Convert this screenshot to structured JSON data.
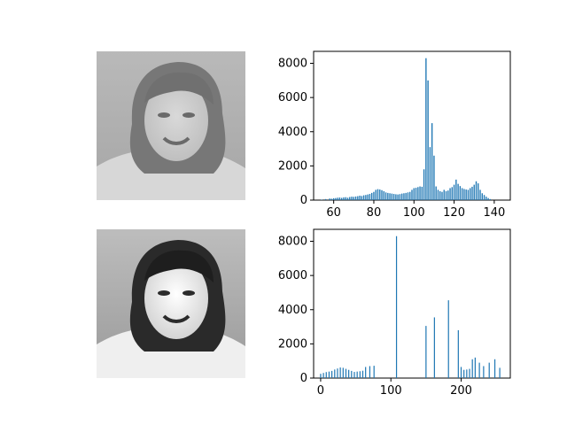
{
  "chart_data": [
    {
      "type": "image",
      "position": "top-left",
      "description_free": true,
      "tone": "grayscale-low-contrast"
    },
    {
      "type": "bar",
      "position": "top-right",
      "xlim": [
        50,
        148
      ],
      "ylim": [
        0,
        8700
      ],
      "xticks": [
        60,
        80,
        100,
        120,
        140
      ],
      "yticks": [
        0,
        2000,
        4000,
        6000,
        8000
      ],
      "bar_color": "#1f77b4",
      "x": [
        54,
        56,
        58,
        59,
        60,
        61,
        62,
        63,
        64,
        65,
        66,
        67,
        68,
        69,
        70,
        71,
        72,
        73,
        74,
        75,
        76,
        77,
        78,
        79,
        80,
        81,
        82,
        83,
        84,
        85,
        86,
        87,
        88,
        89,
        90,
        91,
        92,
        93,
        94,
        95,
        96,
        97,
        98,
        99,
        100,
        101,
        102,
        103,
        104,
        105,
        106,
        107,
        108,
        109,
        110,
        111,
        112,
        113,
        114,
        115,
        116,
        117,
        118,
        119,
        120,
        121,
        122,
        123,
        124,
        125,
        126,
        127,
        128,
        129,
        130,
        131,
        132,
        133,
        134,
        135,
        136,
        137,
        138
      ],
      "y": [
        30,
        60,
        90,
        80,
        110,
        120,
        140,
        150,
        130,
        160,
        170,
        140,
        180,
        200,
        190,
        210,
        230,
        260,
        240,
        280,
        300,
        330,
        360,
        420,
        480,
        600,
        640,
        620,
        580,
        520,
        450,
        420,
        400,
        380,
        360,
        340,
        330,
        350,
        380,
        400,
        420,
        450,
        480,
        600,
        700,
        720,
        760,
        800,
        780,
        1800,
        8300,
        7000,
        3100,
        4500,
        2600,
        800,
        600,
        520,
        480,
        600,
        520,
        560,
        700,
        760,
        900,
        1200,
        950,
        820,
        700,
        650,
        620,
        600,
        700,
        780,
        900,
        1100,
        980,
        600,
        400,
        300,
        200,
        120,
        60
      ]
    },
    {
      "type": "image",
      "position": "bottom-left",
      "tone": "grayscale-high-contrast"
    },
    {
      "type": "bar",
      "position": "bottom-right",
      "xlim": [
        -10,
        270
      ],
      "ylim": [
        0,
        8700
      ],
      "xticks": [
        0,
        100,
        200
      ],
      "yticks": [
        0,
        2000,
        4000,
        6000,
        8000
      ],
      "bar_color": "#1f77b4",
      "x": [
        0,
        4,
        8,
        12,
        16,
        20,
        24,
        28,
        32,
        36,
        40,
        44,
        48,
        52,
        56,
        60,
        64,
        70,
        76,
        108,
        150,
        162,
        182,
        196,
        200,
        204,
        208,
        212,
        216,
        220,
        226,
        232,
        240,
        248,
        255
      ],
      "y": [
        250,
        300,
        350,
        380,
        420,
        500,
        560,
        620,
        600,
        540,
        480,
        420,
        360,
        380,
        400,
        430,
        650,
        700,
        720,
        8300,
        3050,
        3550,
        4550,
        2800,
        650,
        480,
        500,
        540,
        1100,
        1200,
        900,
        700,
        900,
        1100,
        600
      ]
    }
  ]
}
